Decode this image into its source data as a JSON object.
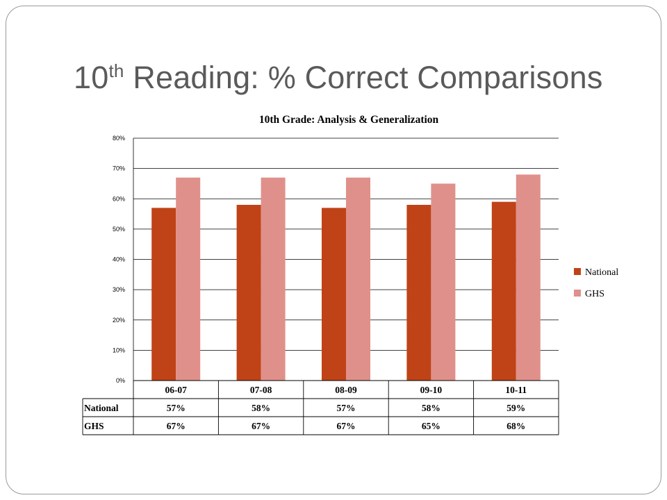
{
  "slide": {
    "title_main": "10",
    "title_sup": "th",
    "title_rest": " Reading: % Correct Comparisons"
  },
  "chart_data": {
    "type": "bar",
    "title": "10th Grade: Analysis & Generalization",
    "categories": [
      "06-07",
      "07-08",
      "08-09",
      "09-10",
      "10-11"
    ],
    "series": [
      {
        "name": "National",
        "values": [
          57,
          58,
          57,
          58,
          59
        ],
        "color": "#bf4317",
        "labels": [
          "57%",
          "58%",
          "57%",
          "58%",
          "59%"
        ]
      },
      {
        "name": "GHS",
        "values": [
          67,
          67,
          67,
          65,
          68
        ],
        "color": "#e0908a",
        "labels": [
          "67%",
          "67%",
          "67%",
          "65%",
          "68%"
        ]
      }
    ],
    "y_ticks": [
      "0%",
      "10%",
      "20%",
      "30%",
      "40%",
      "50%",
      "60%",
      "70%",
      "80%"
    ],
    "ylim": [
      0,
      80
    ],
    "grid": true,
    "legend_position": "right",
    "data_table": true
  }
}
